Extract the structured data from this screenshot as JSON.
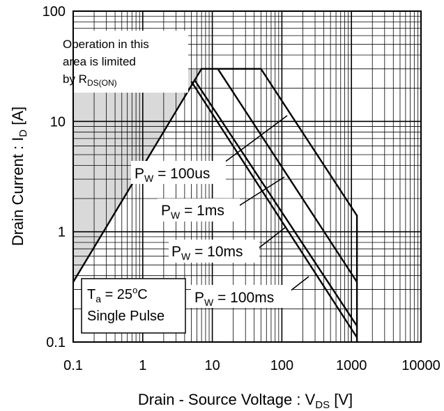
{
  "chart_data": {
    "type": "line",
    "xscale": "log",
    "yscale": "log",
    "xlim": [
      0.1,
      10000
    ],
    "ylim": [
      0.1,
      100
    ],
    "grid": true,
    "xlabel": {
      "main": "Drain - Source Voltage : V",
      "sub": "DS",
      "unit": " [V]"
    },
    "ylabel": {
      "main": "Drain Current : I",
      "sub": "D",
      "unit": " [A]"
    },
    "x_ticks": [
      "0.1",
      "1",
      "10",
      "100",
      "1000",
      "10000"
    ],
    "y_ticks": [
      "0.1",
      "1",
      "10",
      "100"
    ],
    "rds_on_limit": {
      "line": [
        [
          0.1,
          0.35
        ],
        [
          7,
          30
        ]
      ],
      "label_lines": [
        "Operation in this",
        "area is limited"
      ],
      "label_by": "by R",
      "label_sub": "DS(ON)"
    },
    "series": [
      {
        "label_main": "P",
        "label_sub": "W",
        "label_value": " = 100us",
        "points": [
          [
            0.1,
            0.35
          ],
          [
            7,
            30
          ],
          [
            50,
            30
          ],
          [
            1200,
            1.4
          ],
          [
            1200,
            0.1
          ]
        ]
      },
      {
        "label_main": "P",
        "label_sub": "W",
        "label_value": " = 1ms",
        "points": [
          [
            12,
            30
          ],
          [
            1200,
            0.35
          ]
        ]
      },
      {
        "label_main": "P",
        "label_sub": "W",
        "label_value": " = 10ms",
        "points": [
          [
            5.5,
            24
          ],
          [
            1200,
            0.14
          ]
        ]
      },
      {
        "label_main": "P",
        "label_sub": "W",
        "label_value": " = 100ms",
        "points": [
          [
            5,
            23
          ],
          [
            1200,
            0.11
          ]
        ]
      }
    ],
    "conditions": {
      "line1_main": "T",
      "line1_sub": "a",
      "line1_value": " = 25",
      "line1_deg": "o",
      "line1_unit": "C",
      "line2": "Single Pulse"
    }
  }
}
